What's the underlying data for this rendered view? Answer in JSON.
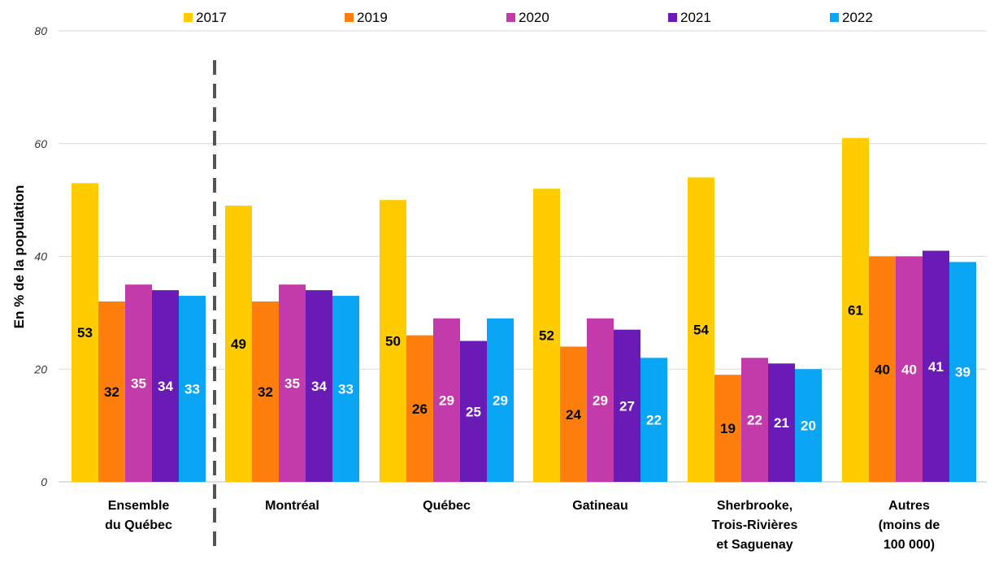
{
  "chart_data": {
    "type": "bar",
    "ylabel": "En % de la population",
    "ylim": [
      0,
      80
    ],
    "yticks": [
      0,
      20,
      40,
      60,
      80
    ],
    "grid": true,
    "legend_position": "top",
    "categories": [
      [
        "Ensemble",
        "du Québec"
      ],
      [
        "Montréal"
      ],
      [
        "Québec"
      ],
      [
        "Gatineau"
      ],
      [
        "Sherbrooke,",
        "Trois-Rivières",
        "et Saguenay"
      ],
      [
        "Autres",
        "(moins de",
        "100 000)"
      ]
    ],
    "series": [
      {
        "name": "2017",
        "color": "#FFCC00",
        "label_color": "#000000",
        "values": [
          53,
          49,
          50,
          52,
          54,
          61
        ]
      },
      {
        "name": "2019",
        "color": "#FF7F0E",
        "label_color": "#000000",
        "values": [
          32,
          32,
          26,
          24,
          19,
          40
        ]
      },
      {
        "name": "2020",
        "color": "#C33BAA",
        "label_color": "#ffffff",
        "values": [
          35,
          35,
          29,
          29,
          22,
          40
        ]
      },
      {
        "name": "2021",
        "color": "#6A1AB5",
        "label_color": "#ffffff",
        "values": [
          34,
          34,
          25,
          27,
          21,
          41
        ]
      },
      {
        "name": "2022",
        "color": "#0AA5F5",
        "label_color": "#ffffff",
        "values": [
          33,
          33,
          29,
          22,
          20,
          39
        ]
      }
    ],
    "separator_after_category": 0
  }
}
